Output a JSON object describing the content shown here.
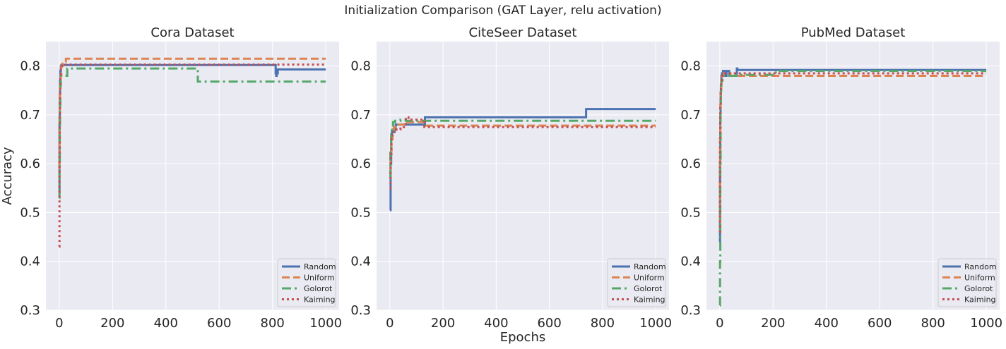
{
  "figure": {
    "suptitle": "Initialization Comparison  (GAT Layer, relu activation)"
  },
  "style": {
    "plot_bg": "#eaeaf2",
    "grid_color": "#ffffff",
    "text_color": "#262626",
    "series_colors": {
      "Random": "#4c72b0",
      "Uniform": "#dd8452",
      "Golorot": "#55a868",
      "Kaiming": "#c44e52"
    },
    "series_dash": {
      "Random": "solid",
      "Uniform": "dashed",
      "Golorot": "dash-dot",
      "Kaiming": "dotted"
    }
  },
  "chart_data": [
    {
      "type": "line",
      "title": "Cora Dataset",
      "xlabel": "",
      "ylabel": "Accuracy",
      "xlim": [
        -50,
        1050
      ],
      "ylim": [
        0.3,
        0.85
      ],
      "xticks": [
        0,
        200,
        400,
        600,
        800,
        1000
      ],
      "yticks": [
        0.3,
        0.4,
        0.5,
        0.6,
        0.7,
        0.8
      ],
      "grid": true,
      "legend": "lower-right",
      "series": [
        {
          "name": "Random",
          "x": [
            0,
            1,
            2,
            3,
            4,
            6,
            8,
            10,
            810,
            812,
            814,
            816,
            818,
            820,
            1000
          ],
          "y": [
            0.54,
            0.68,
            0.73,
            0.77,
            0.79,
            0.8,
            0.802,
            0.802,
            0.802,
            0.785,
            0.78,
            0.79,
            0.785,
            0.793,
            0.793
          ]
        },
        {
          "name": "Uniform",
          "x": [
            0,
            1,
            2,
            3,
            5,
            8,
            12,
            25,
            1000
          ],
          "y": [
            0.59,
            0.7,
            0.74,
            0.76,
            0.78,
            0.8,
            0.805,
            0.815,
            0.815
          ]
        },
        {
          "name": "Golorot",
          "x": [
            0,
            1,
            2,
            3,
            4,
            6,
            8,
            10,
            20,
            30,
            515,
            520,
            1000
          ],
          "y": [
            0.53,
            0.6,
            0.68,
            0.72,
            0.76,
            0.78,
            0.78,
            0.78,
            0.78,
            0.795,
            0.795,
            0.768,
            0.768
          ]
        },
        {
          "name": "Kaiming",
          "x": [
            0,
            1,
            2,
            3,
            4,
            6,
            10,
            1000
          ],
          "y": [
            0.43,
            0.62,
            0.7,
            0.75,
            0.78,
            0.8,
            0.803,
            0.803
          ]
        }
      ]
    },
    {
      "type": "line",
      "title": "CiteSeer Dataset",
      "xlabel": "Epochs",
      "ylabel": "",
      "xlim": [
        -50,
        1050
      ],
      "ylim": [
        0.3,
        0.85
      ],
      "xticks": [
        0,
        200,
        400,
        600,
        800,
        1000
      ],
      "yticks": [
        0.3,
        0.4,
        0.5,
        0.6,
        0.7,
        0.8
      ],
      "grid": true,
      "legend": "lower-right",
      "series": [
        {
          "name": "Random",
          "x": [
            0,
            3,
            5,
            8,
            12,
            15,
            18,
            22,
            30,
            130,
            132,
            735,
            738,
            1000
          ],
          "y": [
            0.505,
            0.6,
            0.65,
            0.665,
            0.67,
            0.665,
            0.67,
            0.68,
            0.68,
            0.68,
            0.695,
            0.695,
            0.712,
            0.712
          ]
        },
        {
          "name": "Uniform",
          "x": [
            0,
            3,
            6,
            10,
            15,
            25,
            40,
            60,
            130,
            135,
            1000
          ],
          "y": [
            0.58,
            0.62,
            0.65,
            0.67,
            0.675,
            0.68,
            0.68,
            0.685,
            0.685,
            0.678,
            0.678
          ]
        },
        {
          "name": "Golorot",
          "x": [
            0,
            2,
            5,
            8,
            12,
            20,
            40,
            60,
            80,
            1000
          ],
          "y": [
            0.57,
            0.63,
            0.66,
            0.675,
            0.685,
            0.688,
            0.69,
            0.688,
            0.688,
            0.688
          ]
        },
        {
          "name": "Kaiming",
          "x": [
            0,
            3,
            6,
            10,
            20,
            40,
            60,
            70,
            130,
            1000
          ],
          "y": [
            0.55,
            0.62,
            0.65,
            0.665,
            0.67,
            0.675,
            0.695,
            0.69,
            0.675,
            0.675
          ]
        }
      ]
    },
    {
      "type": "line",
      "title": "PubMed Dataset",
      "xlabel": "",
      "ylabel": "",
      "xlim": [
        -50,
        1050
      ],
      "ylim": [
        0.3,
        0.85
      ],
      "xticks": [
        0,
        200,
        400,
        600,
        800,
        1000
      ],
      "yticks": [
        0.3,
        0.4,
        0.5,
        0.6,
        0.7,
        0.8
      ],
      "grid": true,
      "legend": "lower-right",
      "series": [
        {
          "name": "Random",
          "x": [
            0,
            1,
            2,
            3,
            4,
            6,
            8,
            12,
            18,
            22,
            25,
            30,
            35,
            40,
            62,
            64,
            66,
            1000
          ],
          "y": [
            0.44,
            0.6,
            0.7,
            0.74,
            0.76,
            0.78,
            0.785,
            0.79,
            0.79,
            0.78,
            0.79,
            0.79,
            0.78,
            0.78,
            0.785,
            0.795,
            0.792,
            0.792
          ]
        },
        {
          "name": "Uniform",
          "x": [
            0,
            1,
            2,
            3,
            5,
            8,
            15,
            40,
            1000
          ],
          "y": [
            0.48,
            0.65,
            0.72,
            0.75,
            0.77,
            0.78,
            0.785,
            0.78,
            0.78
          ]
        },
        {
          "name": "Golorot",
          "x": [
            0,
            1,
            2,
            3,
            4,
            6,
            10,
            20,
            60,
            200,
            210,
            1000
          ],
          "y": [
            0.31,
            0.4,
            0.6,
            0.72,
            0.75,
            0.77,
            0.78,
            0.78,
            0.782,
            0.782,
            0.79,
            0.79
          ]
        },
        {
          "name": "Kaiming",
          "x": [
            0,
            1,
            2,
            3,
            5,
            8,
            15,
            30,
            1000
          ],
          "y": [
            0.46,
            0.65,
            0.72,
            0.75,
            0.77,
            0.78,
            0.785,
            0.785,
            0.785
          ]
        }
      ]
    }
  ]
}
